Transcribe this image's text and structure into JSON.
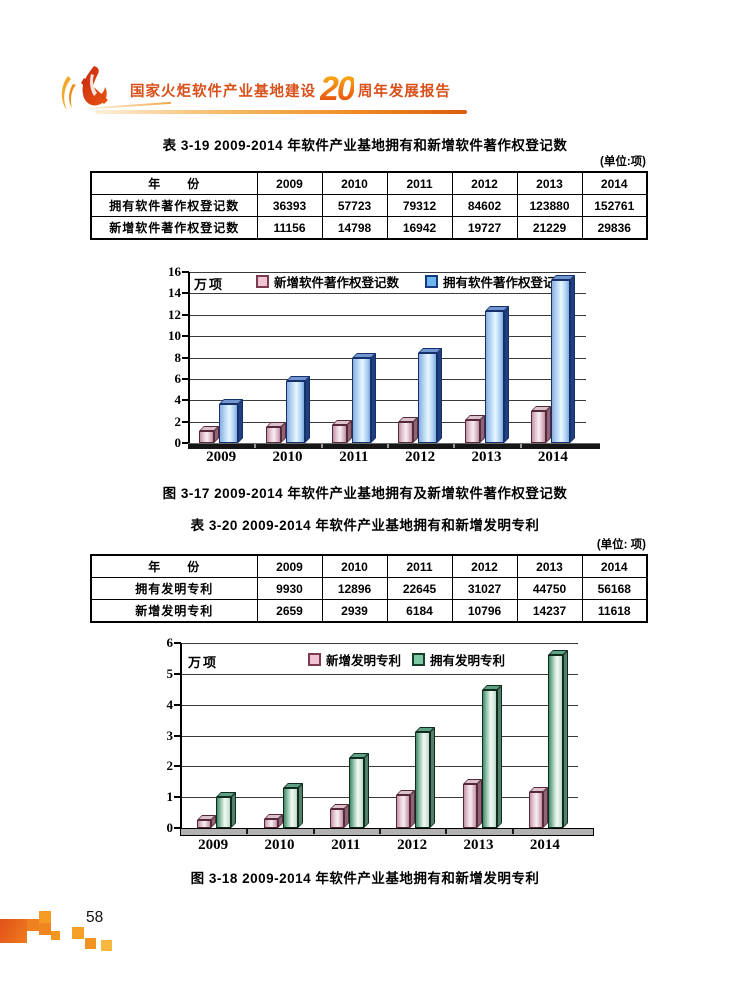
{
  "page": {
    "number": "58"
  },
  "header": {
    "title_prefix": "国家火炬软件产业基地建设",
    "title_number": "20",
    "title_suffix": "周年发展报告"
  },
  "table1": {
    "title": "表 3-19  2009-2014 年软件产业基地拥有和新增软件著作权登记数",
    "unit": "(单位:项)",
    "columns": [
      "年　　份",
      "2009",
      "2010",
      "2011",
      "2012",
      "2013",
      "2014"
    ],
    "rows": [
      {
        "label": "拥有软件著作权登记数",
        "values": [
          "36393",
          "57723",
          "79312",
          "84602",
          "123880",
          "152761"
        ]
      },
      {
        "label": "新增软件著作权登记数",
        "values": [
          "11156",
          "14798",
          "16942",
          "19727",
          "21229",
          "29836"
        ]
      }
    ]
  },
  "figure1": {
    "caption": "图 3-17  2009-2014 年软件产业基地拥有及新增软件著作权登记数"
  },
  "table2": {
    "title": "表 3-20  2009-2014 年软件产业基地拥有和新增发明专利",
    "unit": "(单位: 项)",
    "columns": [
      "年　　份",
      "2009",
      "2010",
      "2011",
      "2012",
      "2013",
      "2014"
    ],
    "rows": [
      {
        "label": "拥有发明专利",
        "values": [
          "9930",
          "12896",
          "22645",
          "31027",
          "44750",
          "56168"
        ]
      },
      {
        "label": "新增发明专利",
        "values": [
          "2659",
          "2939",
          "6184",
          "10796",
          "14237",
          "11618"
        ]
      }
    ]
  },
  "figure2": {
    "caption": "图 3-18  2009-2014 年软件产业基地拥有和新增发明专利"
  },
  "colors": {
    "header_orange": "#d8501a",
    "series_new_pink": "#e7ccd8",
    "series_owned_blue": "#c3e0f8",
    "series_owned_green": "#9cc7b0"
  },
  "chart_data": [
    {
      "type": "bar",
      "title": "",
      "unit_label": "万项",
      "categories": [
        "2009",
        "2010",
        "2011",
        "2012",
        "2013",
        "2014"
      ],
      "series": [
        {
          "name": "新增软件著作权登记数",
          "color": "pink",
          "values": [
            1.1156,
            1.4798,
            1.6942,
            1.9727,
            2.1229,
            2.9836
          ]
        },
        {
          "name": "拥有软件著作权登记数",
          "color": "blue",
          "values": [
            3.6393,
            5.7723,
            7.9312,
            8.4602,
            12.388,
            15.2761
          ]
        }
      ],
      "ylim": [
        0,
        16
      ],
      "ytick_step": 2,
      "grid": true,
      "legend_position": "top-inside"
    },
    {
      "type": "bar",
      "title": "",
      "unit_label": "万项",
      "categories": [
        "2009",
        "2010",
        "2011",
        "2012",
        "2013",
        "2014"
      ],
      "series": [
        {
          "name": "新增发明专利",
          "color": "pink",
          "values": [
            0.2659,
            0.2939,
            0.6184,
            1.0796,
            1.4237,
            1.1618
          ]
        },
        {
          "name": "拥有发明专利",
          "color": "green",
          "values": [
            0.993,
            1.2896,
            2.2645,
            3.1027,
            4.475,
            5.6168
          ]
        }
      ],
      "ylim": [
        0,
        6
      ],
      "ytick_step": 1,
      "grid": true,
      "legend_position": "top-inside"
    }
  ]
}
